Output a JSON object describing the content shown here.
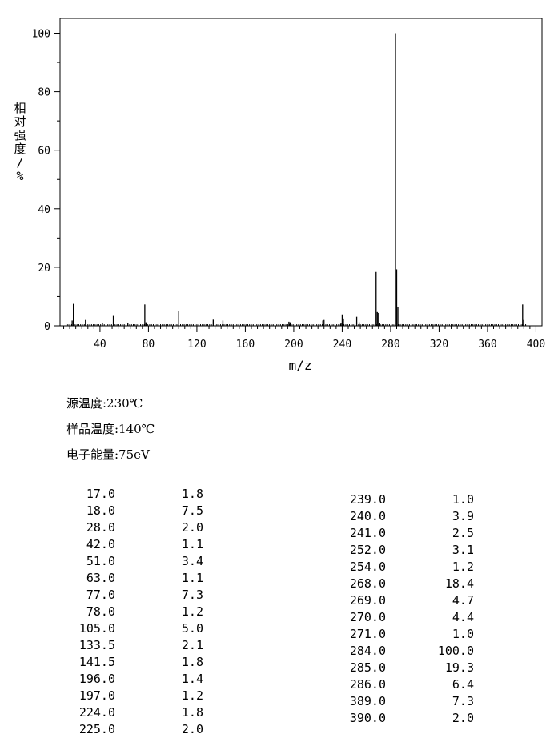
{
  "chart_data": {
    "type": "bar",
    "title": "",
    "xlabel": "m/z",
    "ylabel": "相对强度/%",
    "xlim": [
      7,
      405
    ],
    "ylim": [
      0,
      105
    ],
    "x_ticks": [
      40,
      80,
      120,
      160,
      200,
      240,
      280,
      320,
      360,
      400
    ],
    "y_ticks": [
      0,
      20,
      40,
      60,
      80,
      100
    ],
    "grid": false,
    "legend": "none",
    "line_color": "#000000",
    "peaks": [
      {
        "mz": 17.0,
        "intensity": 1.8
      },
      {
        "mz": 18.0,
        "intensity": 7.5
      },
      {
        "mz": 28.0,
        "intensity": 2.0
      },
      {
        "mz": 42.0,
        "intensity": 1.1
      },
      {
        "mz": 51.0,
        "intensity": 3.4
      },
      {
        "mz": 63.0,
        "intensity": 1.1
      },
      {
        "mz": 77.0,
        "intensity": 7.3
      },
      {
        "mz": 78.0,
        "intensity": 1.2
      },
      {
        "mz": 105.0,
        "intensity": 5.0
      },
      {
        "mz": 133.5,
        "intensity": 2.1
      },
      {
        "mz": 141.5,
        "intensity": 1.8
      },
      {
        "mz": 196.0,
        "intensity": 1.4
      },
      {
        "mz": 197.0,
        "intensity": 1.2
      },
      {
        "mz": 224.0,
        "intensity": 1.8
      },
      {
        "mz": 225.0,
        "intensity": 2.0
      },
      {
        "mz": 239.0,
        "intensity": 1.0
      },
      {
        "mz": 240.0,
        "intensity": 3.9
      },
      {
        "mz": 241.0,
        "intensity": 2.5
      },
      {
        "mz": 252.0,
        "intensity": 3.1
      },
      {
        "mz": 254.0,
        "intensity": 1.2
      },
      {
        "mz": 268.0,
        "intensity": 18.4
      },
      {
        "mz": 269.0,
        "intensity": 4.7
      },
      {
        "mz": 270.0,
        "intensity": 4.4
      },
      {
        "mz": 271.0,
        "intensity": 1.0
      },
      {
        "mz": 284.0,
        "intensity": 100.0
      },
      {
        "mz": 285.0,
        "intensity": 19.3
      },
      {
        "mz": 286.0,
        "intensity": 6.4
      },
      {
        "mz": 389.0,
        "intensity": 7.3
      },
      {
        "mz": 390.0,
        "intensity": 2.0
      }
    ]
  },
  "conditions": [
    "源温度:230℃",
    "样品温度:140℃",
    "电子能量:75eV"
  ],
  "peak_table": {
    "left": [
      {
        "mz": "17.0",
        "abundance": "1.8"
      },
      {
        "mz": "18.0",
        "abundance": "7.5"
      },
      {
        "mz": "28.0",
        "abundance": "2.0"
      },
      {
        "mz": "42.0",
        "abundance": "1.1"
      },
      {
        "mz": "51.0",
        "abundance": "3.4"
      },
      {
        "mz": "63.0",
        "abundance": "1.1"
      },
      {
        "mz": "77.0",
        "abundance": "7.3"
      },
      {
        "mz": "78.0",
        "abundance": "1.2"
      },
      {
        "mz": "105.0",
        "abundance": "5.0"
      },
      {
        "mz": "133.5",
        "abundance": "2.1"
      },
      {
        "mz": "141.5",
        "abundance": "1.8"
      },
      {
        "mz": "196.0",
        "abundance": "1.4"
      },
      {
        "mz": "197.0",
        "abundance": "1.2"
      },
      {
        "mz": "224.0",
        "abundance": "1.8"
      },
      {
        "mz": "225.0",
        "abundance": "2.0"
      }
    ],
    "right": [
      {
        "mz": "239.0",
        "abundance": "1.0"
      },
      {
        "mz": "240.0",
        "abundance": "3.9"
      },
      {
        "mz": "241.0",
        "abundance": "2.5"
      },
      {
        "mz": "252.0",
        "abundance": "3.1"
      },
      {
        "mz": "254.0",
        "abundance": "1.2"
      },
      {
        "mz": "268.0",
        "abundance": "18.4"
      },
      {
        "mz": "269.0",
        "abundance": "4.7"
      },
      {
        "mz": "270.0",
        "abundance": "4.4"
      },
      {
        "mz": "271.0",
        "abundance": "1.0"
      },
      {
        "mz": "284.0",
        "abundance": "100.0"
      },
      {
        "mz": "285.0",
        "abundance": "19.3"
      },
      {
        "mz": "286.0",
        "abundance": "6.4"
      },
      {
        "mz": "389.0",
        "abundance": "7.3"
      },
      {
        "mz": "390.0",
        "abundance": "2.0"
      }
    ]
  }
}
